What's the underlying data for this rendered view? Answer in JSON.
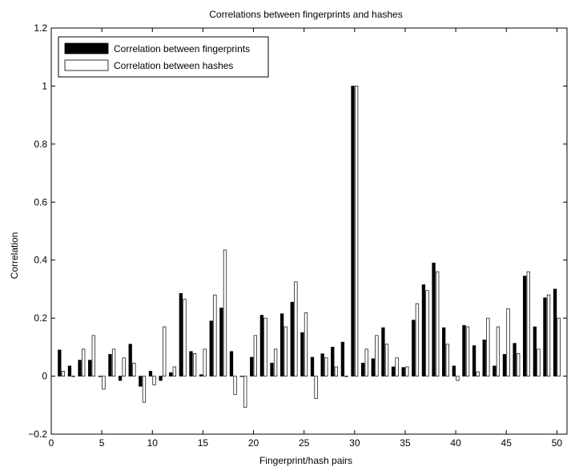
{
  "chart_data": {
    "type": "bar",
    "title": "Correlations between fingerprints and hashes",
    "xlabel": "Fingerprint/hash pairs",
    "ylabel": "Correlation",
    "xlim": [
      0,
      51
    ],
    "ylim": [
      -0.2,
      1.2
    ],
    "xticks": [
      0,
      5,
      10,
      15,
      20,
      25,
      30,
      35,
      40,
      45,
      50
    ],
    "yticks": [
      -0.2,
      0,
      0.2,
      0.4,
      0.6,
      0.8,
      1,
      1.2
    ],
    "ytick_labels": [
      "−0.2",
      "0",
      "0.2",
      "0.4",
      "0.6",
      "0.8",
      "1",
      "1.2"
    ],
    "grid": false,
    "legend_position": "top-left",
    "categories": [
      1,
      2,
      3,
      4,
      5,
      6,
      7,
      8,
      9,
      10,
      11,
      12,
      13,
      14,
      15,
      16,
      17,
      18,
      19,
      20,
      21,
      22,
      23,
      24,
      25,
      26,
      27,
      28,
      29,
      30,
      31,
      32,
      33,
      34,
      35,
      36,
      37,
      38,
      39,
      40,
      41,
      42,
      43,
      44,
      45,
      46,
      47,
      48,
      49,
      50
    ],
    "series": [
      {
        "name": "Correlation between fingerprints",
        "color": "#000000",
        "values": [
          0.09,
          0.035,
          0.055,
          0.055,
          0.0,
          0.075,
          -0.015,
          0.11,
          -0.035,
          0.017,
          -0.015,
          0.012,
          0.285,
          0.085,
          0.005,
          0.19,
          0.235,
          0.085,
          0.0,
          0.065,
          0.21,
          0.045,
          0.215,
          0.255,
          0.15,
          0.065,
          0.077,
          0.1,
          0.117,
          1.0,
          0.045,
          0.06,
          0.167,
          0.032,
          0.03,
          0.193,
          0.315,
          0.39,
          0.167,
          0.035,
          0.175,
          0.105,
          0.125,
          0.035,
          0.075,
          0.113,
          0.345,
          0.17,
          0.27,
          0.3
        ]
      },
      {
        "name": "Correlation between hashes",
        "color": "#ffffff",
        "values": [
          0.017,
          0.0,
          0.093,
          0.14,
          -0.045,
          0.093,
          0.063,
          0.045,
          -0.09,
          -0.03,
          0.17,
          0.032,
          0.265,
          0.078,
          0.093,
          0.28,
          0.435,
          -0.063,
          -0.107,
          0.14,
          0.2,
          0.093,
          0.17,
          0.325,
          0.218,
          -0.077,
          0.063,
          0.032,
          0.0,
          1.0,
          0.093,
          0.14,
          0.11,
          0.063,
          0.032,
          0.25,
          0.295,
          0.36,
          0.11,
          -0.015,
          0.17,
          0.015,
          0.2,
          0.17,
          0.232,
          0.078,
          0.36,
          0.093,
          0.28,
          0.2
        ]
      }
    ]
  }
}
